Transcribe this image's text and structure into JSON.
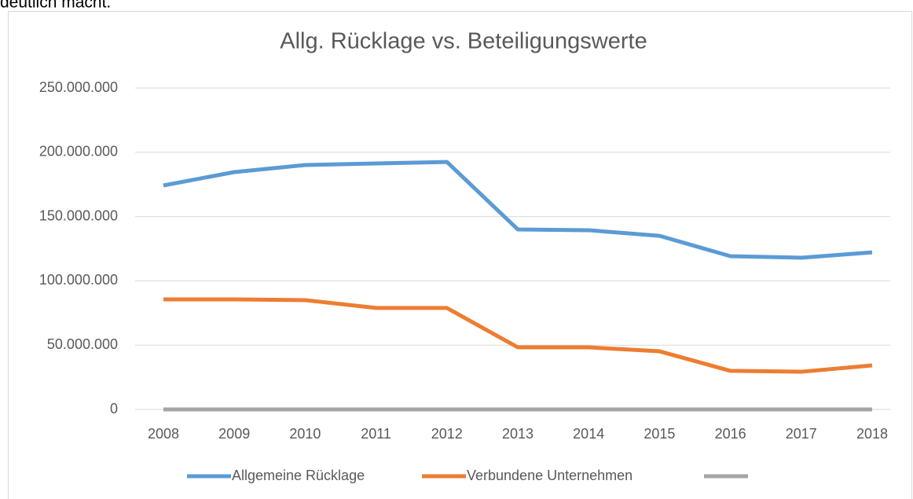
{
  "page_text": "deutlich macht.",
  "chart_data": {
    "type": "line",
    "title": "Allg. Rücklage vs. Beteiligungswerte",
    "categories": [
      "2008",
      "2009",
      "2010",
      "2011",
      "2012",
      "2013",
      "2014",
      "2015",
      "2016",
      "2017",
      "2018"
    ],
    "series": [
      {
        "name": "Allgemeine Rücklage",
        "color": "#5b9bd5",
        "values": [
          174200000,
          184600000,
          190100000,
          191300000,
          192500000,
          140000000,
          139400000,
          135000000,
          119200000,
          118000000,
          122200000
        ]
      },
      {
        "name": "Verbundene Unternehmen",
        "color": "#ed7d31",
        "values": [
          85600000,
          85600000,
          85000000,
          78900000,
          78900000,
          48300000,
          48300000,
          45200000,
          30000000,
          29300000,
          34200000
        ]
      },
      {
        "color": "#a5a5a5",
        "values": [
          0,
          0,
          0,
          0,
          0,
          0,
          0,
          0,
          0,
          0,
          0
        ]
      }
    ],
    "ylim": [
      0,
      250000000
    ],
    "yticks": [
      0,
      {
        "value": 50000000,
        "label": "50.000.000"
      },
      {
        "value": 100000000,
        "label": "100.000.000"
      },
      {
        "value": 150000000,
        "label": "150.000.000"
      },
      {
        "value": 200000000,
        "label": "200.000.000"
      },
      {
        "value": 250000000,
        "label": "250.000.000"
      }
    ],
    "grid": true,
    "legend": "bottom"
  }
}
